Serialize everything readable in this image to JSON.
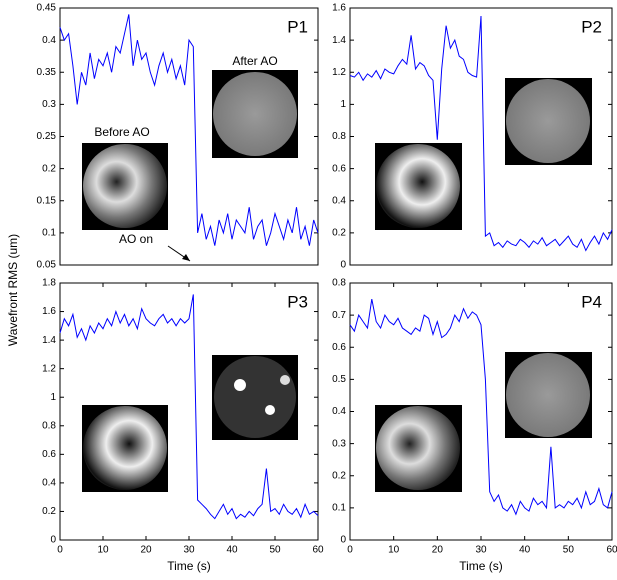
{
  "y_label": "Wavefront RMS (um)",
  "chart_data": [
    {
      "type": "line",
      "panel_label": "P1",
      "annotations": [
        "Before AO",
        "After AO",
        "AO on"
      ],
      "x": [
        0,
        1,
        2,
        3,
        4,
        5,
        6,
        7,
        8,
        9,
        10,
        11,
        12,
        13,
        14,
        15,
        16,
        17,
        18,
        19,
        20,
        21,
        22,
        23,
        24,
        25,
        26,
        27,
        28,
        29,
        30,
        31,
        32,
        33,
        34,
        35,
        36,
        37,
        38,
        39,
        40,
        41,
        42,
        43,
        44,
        45,
        46,
        47,
        48,
        49,
        50,
        51,
        52,
        53,
        54,
        55,
        56,
        57,
        58,
        59,
        60
      ],
      "values": [
        0.42,
        0.4,
        0.41,
        0.36,
        0.3,
        0.35,
        0.33,
        0.38,
        0.34,
        0.37,
        0.36,
        0.38,
        0.35,
        0.39,
        0.38,
        0.41,
        0.44,
        0.36,
        0.4,
        0.37,
        0.38,
        0.35,
        0.33,
        0.36,
        0.38,
        0.35,
        0.37,
        0.34,
        0.36,
        0.33,
        0.4,
        0.39,
        0.1,
        0.13,
        0.09,
        0.11,
        0.08,
        0.12,
        0.1,
        0.13,
        0.09,
        0.12,
        0.11,
        0.1,
        0.14,
        0.09,
        0.11,
        0.12,
        0.08,
        0.1,
        0.13,
        0.11,
        0.09,
        0.12,
        0.1,
        0.14,
        0.09,
        0.11,
        0.08,
        0.12,
        0.1
      ],
      "color": "#0000ff",
      "xlim": [
        0,
        60
      ],
      "ylim": [
        0.05,
        0.45
      ],
      "yticks": [
        0.05,
        0.1,
        0.15,
        0.2,
        0.25,
        0.3,
        0.35,
        0.4,
        0.45
      ]
    },
    {
      "type": "line",
      "panel_label": "P2",
      "x": [
        0,
        1,
        2,
        3,
        4,
        5,
        6,
        7,
        8,
        9,
        10,
        11,
        12,
        13,
        14,
        15,
        16,
        17,
        18,
        19,
        20,
        21,
        22,
        23,
        24,
        25,
        26,
        27,
        28,
        29,
        30,
        31,
        32,
        33,
        34,
        35,
        36,
        37,
        38,
        39,
        40,
        41,
        42,
        43,
        44,
        45,
        46,
        47,
        48,
        49,
        50,
        51,
        52,
        53,
        54,
        55,
        56,
        57,
        58,
        59,
        60
      ],
      "values": [
        1.18,
        1.17,
        1.2,
        1.15,
        1.19,
        1.17,
        1.21,
        1.16,
        1.22,
        1.2,
        1.19,
        1.24,
        1.28,
        1.25,
        1.43,
        1.22,
        1.26,
        1.24,
        1.18,
        1.15,
        0.78,
        1.22,
        1.49,
        1.35,
        1.4,
        1.3,
        1.28,
        1.2,
        1.18,
        1.17,
        1.55,
        0.18,
        0.2,
        0.12,
        0.14,
        0.11,
        0.15,
        0.13,
        0.12,
        0.16,
        0.14,
        0.11,
        0.15,
        0.13,
        0.17,
        0.12,
        0.14,
        0.16,
        0.12,
        0.15,
        0.18,
        0.13,
        0.11,
        0.16,
        0.09,
        0.14,
        0.18,
        0.13,
        0.2,
        0.16,
        0.22
      ],
      "color": "#0000ff",
      "xlim": [
        0,
        60
      ],
      "ylim": [
        0,
        1.6
      ],
      "yticks": [
        0,
        0.2,
        0.4,
        0.6,
        0.8,
        1,
        1.2,
        1.4,
        1.6
      ]
    },
    {
      "type": "line",
      "panel_label": "P3",
      "xlabel": "Time (s)",
      "x": [
        0,
        1,
        2,
        3,
        4,
        5,
        6,
        7,
        8,
        9,
        10,
        11,
        12,
        13,
        14,
        15,
        16,
        17,
        18,
        19,
        20,
        21,
        22,
        23,
        24,
        25,
        26,
        27,
        28,
        29,
        30,
        31,
        32,
        33,
        34,
        35,
        36,
        37,
        38,
        39,
        40,
        41,
        42,
        43,
        44,
        45,
        46,
        47,
        48,
        49,
        50,
        51,
        52,
        53,
        54,
        55,
        56,
        57,
        58,
        59,
        60
      ],
      "values": [
        1.45,
        1.55,
        1.5,
        1.58,
        1.42,
        1.48,
        1.4,
        1.5,
        1.45,
        1.52,
        1.48,
        1.55,
        1.5,
        1.6,
        1.52,
        1.58,
        1.5,
        1.55,
        1.48,
        1.62,
        1.55,
        1.52,
        1.5,
        1.55,
        1.58,
        1.52,
        1.55,
        1.5,
        1.55,
        1.52,
        1.55,
        1.72,
        0.28,
        0.25,
        0.22,
        0.18,
        0.15,
        0.2,
        0.25,
        0.18,
        0.22,
        0.15,
        0.18,
        0.16,
        0.2,
        0.17,
        0.22,
        0.25,
        0.5,
        0.2,
        0.22,
        0.18,
        0.25,
        0.2,
        0.18,
        0.22,
        0.16,
        0.25,
        0.18,
        0.2,
        0.17
      ],
      "color": "#0000ff",
      "xlim": [
        0,
        60
      ],
      "ylim": [
        0,
        1.8
      ],
      "xticks": [
        0,
        10,
        20,
        30,
        40,
        50,
        60
      ],
      "yticks": [
        0,
        0.2,
        0.4,
        0.6,
        0.8,
        1,
        1.2,
        1.4,
        1.6,
        1.8
      ]
    },
    {
      "type": "line",
      "panel_label": "P4",
      "xlabel": "Time (s)",
      "x": [
        0,
        1,
        2,
        3,
        4,
        5,
        6,
        7,
        8,
        9,
        10,
        11,
        12,
        13,
        14,
        15,
        16,
        17,
        18,
        19,
        20,
        21,
        22,
        23,
        24,
        25,
        26,
        27,
        28,
        29,
        30,
        31,
        32,
        33,
        34,
        35,
        36,
        37,
        38,
        39,
        40,
        41,
        42,
        43,
        44,
        45,
        46,
        47,
        48,
        49,
        50,
        51,
        52,
        53,
        54,
        55,
        56,
        57,
        58,
        59,
        60
      ],
      "values": [
        0.67,
        0.65,
        0.7,
        0.68,
        0.66,
        0.75,
        0.68,
        0.66,
        0.7,
        0.68,
        0.67,
        0.69,
        0.66,
        0.65,
        0.64,
        0.66,
        0.65,
        0.7,
        0.69,
        0.64,
        0.68,
        0.63,
        0.64,
        0.66,
        0.7,
        0.68,
        0.72,
        0.69,
        0.71,
        0.7,
        0.67,
        0.5,
        0.15,
        0.12,
        0.14,
        0.1,
        0.09,
        0.11,
        0.08,
        0.12,
        0.1,
        0.09,
        0.13,
        0.11,
        0.12,
        0.1,
        0.29,
        0.1,
        0.11,
        0.1,
        0.12,
        0.11,
        0.13,
        0.1,
        0.15,
        0.11,
        0.12,
        0.16,
        0.11,
        0.1,
        0.15
      ],
      "color": "#0000ff",
      "xlim": [
        0,
        60
      ],
      "ylim": [
        0,
        0.8
      ],
      "xticks": [
        0,
        10,
        20,
        30,
        40,
        50,
        60
      ],
      "yticks": [
        0,
        0.1,
        0.2,
        0.3,
        0.4,
        0.5,
        0.6,
        0.7,
        0.8
      ]
    }
  ]
}
